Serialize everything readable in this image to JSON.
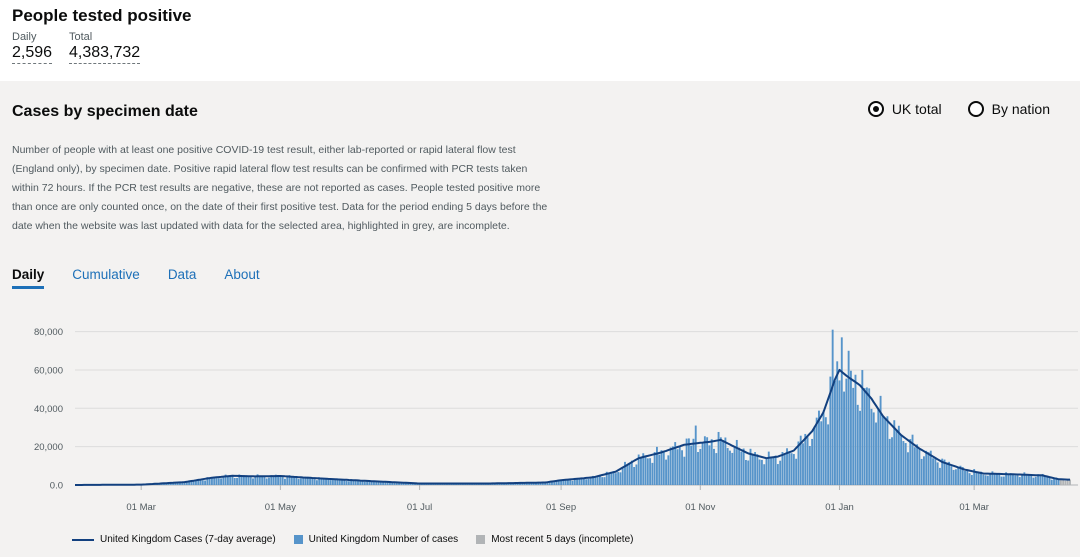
{
  "header": {
    "title": "People tested positive",
    "daily_label": "Daily",
    "daily_value": "2,596",
    "total_label": "Total",
    "total_value": "4,383,732"
  },
  "panel": {
    "title": "Cases by specimen date",
    "radios": [
      {
        "label": "UK total",
        "selected": true
      },
      {
        "label": "By nation",
        "selected": false
      }
    ],
    "description": "Number of people with at least one positive COVID-19 test result, either lab-reported or rapid lateral flow test (England only), by specimen date. Positive rapid lateral flow test results can be confirmed with PCR tests taken within 72 hours. If the PCR test results are negative, these are not reported as cases. People tested positive more than once are only counted once, on the date of their first positive test. Data for the period ending 5 days before the date when the website was last updated with data for the selected area, highlighted in grey, are incomplete.",
    "tabs": [
      "Daily",
      "Cumulative",
      "Data",
      "About"
    ],
    "active_tab": "Daily"
  },
  "colors": {
    "bar": "#5694ca",
    "line": "#12407f",
    "incomplete": "#b1b4b6",
    "grid": "#dcdcdc",
    "link": "#1d70b8"
  },
  "chart_data": {
    "type": "bar",
    "x_start": "2020-02-01",
    "x_end": "2021-04-12",
    "xticks": [
      {
        "date": "2020-03-01",
        "label": "01 Mar"
      },
      {
        "date": "2020-05-01",
        "label": "01 May"
      },
      {
        "date": "2020-07-01",
        "label": "01 Jul"
      },
      {
        "date": "2020-09-01",
        "label": "01 Sep"
      },
      {
        "date": "2020-11-01",
        "label": "01 Nov"
      },
      {
        "date": "2021-01-01",
        "label": "01 Jan"
      },
      {
        "date": "2021-03-01",
        "label": "01 Mar"
      }
    ],
    "yticks": [
      {
        "value": 0,
        "label": "0.0"
      },
      {
        "value": 20000,
        "label": "20,000"
      },
      {
        "value": 40000,
        "label": "40,000"
      },
      {
        "value": 60000,
        "label": "60,000"
      },
      {
        "value": 80000,
        "label": "80,000"
      }
    ],
    "ylim": [
      0,
      85000
    ],
    "line_series": {
      "name": "United Kingdom Cases (7-day average)",
      "points": [
        [
          "2020-02-01",
          0
        ],
        [
          "2020-03-01",
          200
        ],
        [
          "2020-03-20",
          1500
        ],
        [
          "2020-04-01",
          3800
        ],
        [
          "2020-04-10",
          4800
        ],
        [
          "2020-04-20",
          4500
        ],
        [
          "2020-05-01",
          4700
        ],
        [
          "2020-05-10",
          4000
        ],
        [
          "2020-05-25",
          3000
        ],
        [
          "2020-06-10",
          2000
        ],
        [
          "2020-07-01",
          800
        ],
        [
          "2020-08-01",
          800
        ],
        [
          "2020-08-25",
          1300
        ],
        [
          "2020-09-01",
          2500
        ],
        [
          "2020-09-15",
          4000
        ],
        [
          "2020-09-25",
          7000
        ],
        [
          "2020-10-05",
          14000
        ],
        [
          "2020-10-15",
          17000
        ],
        [
          "2020-10-25",
          21000
        ],
        [
          "2020-11-01",
          22000
        ],
        [
          "2020-11-05",
          22500
        ],
        [
          "2020-11-10",
          23500
        ],
        [
          "2020-11-15",
          20500
        ],
        [
          "2020-11-22",
          16500
        ],
        [
          "2020-11-30",
          14000
        ],
        [
          "2020-12-05",
          14800
        ],
        [
          "2020-12-12",
          18000
        ],
        [
          "2020-12-20",
          28000
        ],
        [
          "2020-12-25",
          38000
        ],
        [
          "2020-12-30",
          55000
        ],
        [
          "2021-01-01",
          60000
        ],
        [
          "2021-01-04",
          57000
        ],
        [
          "2021-01-10",
          52000
        ],
        [
          "2021-01-15",
          45000
        ],
        [
          "2021-01-20",
          36000
        ],
        [
          "2021-01-28",
          26000
        ],
        [
          "2021-02-05",
          19000
        ],
        [
          "2021-02-15",
          12000
        ],
        [
          "2021-02-25",
          8000
        ],
        [
          "2021-03-05",
          6000
        ],
        [
          "2021-03-20",
          5500
        ],
        [
          "2021-03-31",
          5000
        ],
        [
          "2021-04-07",
          3000
        ],
        [
          "2021-04-12",
          2800
        ]
      ]
    },
    "bar_series_name": "United Kingdom Number of cases",
    "incomplete_series_name": "Most recent 5 days (incomplete)",
    "incomplete_days": 5,
    "peaks": [
      {
        "date": "2020-10-30",
        "value": 31000
      },
      {
        "date": "2020-12-29",
        "value": 81000
      },
      {
        "date": "2021-01-02",
        "value": 77000
      },
      {
        "date": "2021-01-05",
        "value": 70000
      }
    ]
  },
  "legend": [
    {
      "kind": "line",
      "label": "United Kingdom Cases (7-day average)"
    },
    {
      "kind": "bar",
      "label": "United Kingdom Number of cases"
    },
    {
      "kind": "incomplete",
      "label": "Most recent 5 days (incomplete)"
    }
  ]
}
